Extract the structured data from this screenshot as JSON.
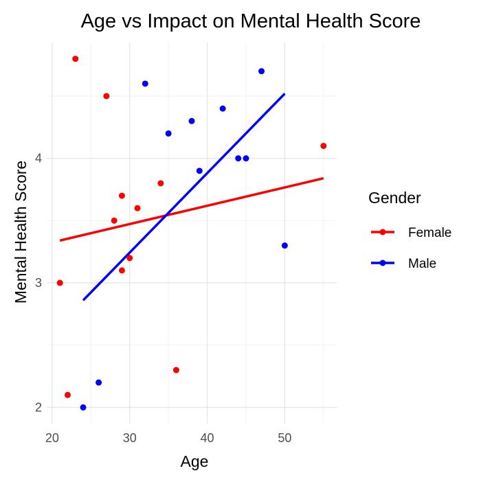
{
  "chart_data": {
    "type": "scatter",
    "title": "Age vs Impact on Mental Health Score",
    "xlabel": "Age",
    "ylabel": "Mental Health Score",
    "xlim": [
      19.3,
      56.7
    ],
    "ylim": [
      1.87,
      4.93
    ],
    "x_ticks": [
      20,
      30,
      40,
      50
    ],
    "y_ticks": [
      2,
      3,
      4
    ],
    "minor_x": [
      25,
      35,
      45,
      55
    ],
    "minor_y": [
      2.5,
      3.5,
      4.5
    ],
    "grid": true,
    "legend": {
      "title": "Gender",
      "position": "right",
      "entries": [
        "Female",
        "Male"
      ]
    },
    "series": [
      {
        "name": "Female",
        "color": "#ff0000",
        "points": [
          {
            "x": 21,
            "y": 3.0
          },
          {
            "x": 22,
            "y": 2.1
          },
          {
            "x": 23,
            "y": 4.8
          },
          {
            "x": 27,
            "y": 4.5
          },
          {
            "x": 28,
            "y": 3.5
          },
          {
            "x": 29,
            "y": 3.7
          },
          {
            "x": 29,
            "y": 3.1
          },
          {
            "x": 30,
            "y": 3.2
          },
          {
            "x": 31,
            "y": 3.6
          },
          {
            "x": 34,
            "y": 3.8
          },
          {
            "x": 36,
            "y": 2.3
          },
          {
            "x": 55,
            "y": 4.1
          }
        ],
        "trend": {
          "x": [
            21,
            55
          ],
          "y": [
            3.34,
            3.84
          ]
        }
      },
      {
        "name": "Male",
        "color": "#0000ff",
        "points": [
          {
            "x": 24,
            "y": 2.0
          },
          {
            "x": 26,
            "y": 2.2
          },
          {
            "x": 32,
            "y": 4.6
          },
          {
            "x": 35,
            "y": 4.2
          },
          {
            "x": 38,
            "y": 4.3
          },
          {
            "x": 39,
            "y": 3.9
          },
          {
            "x": 42,
            "y": 4.4
          },
          {
            "x": 44,
            "y": 4.0
          },
          {
            "x": 45,
            "y": 4.0
          },
          {
            "x": 47,
            "y": 4.7
          },
          {
            "x": 50,
            "y": 3.3
          }
        ],
        "trend": {
          "x": [
            24,
            50
          ],
          "y": [
            2.86,
            4.52
          ]
        }
      }
    ]
  }
}
